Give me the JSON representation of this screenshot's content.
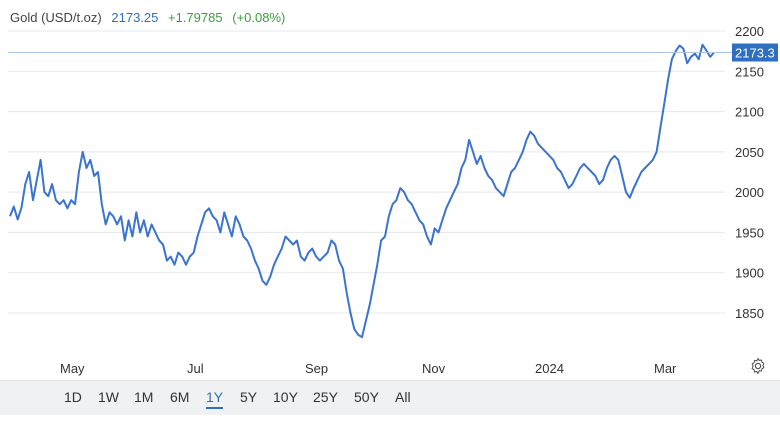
{
  "legend": {
    "symbol": "Gold (USD/t.oz)",
    "price": "2173.25",
    "change": "+1.79785",
    "percent": "(+0.08%)"
  },
  "price_tag": "2173.3",
  "range_buttons": [
    "1D",
    "1W",
    "1M",
    "6M",
    "1Y",
    "5Y",
    "10Y",
    "25Y",
    "50Y",
    "All"
  ],
  "active_range": "1Y",
  "icons": {
    "settings": "gear-icon"
  },
  "colors": {
    "line": "#3b73d1",
    "price_tag_bg": "#2f6fbf",
    "legend_change": "#3a9f3a",
    "grid": "#e6e8eb"
  },
  "chart_data": {
    "type": "line",
    "title": "",
    "xlabel": "",
    "ylabel": "",
    "y_ticks": [
      1850,
      1900,
      1950,
      2000,
      2050,
      2100,
      2150,
      2200
    ],
    "x_ticks": [
      "May",
      "Jul",
      "Sep",
      "Nov",
      "2024",
      "Mar"
    ],
    "ylim": [
      1810,
      2220
    ],
    "grid": true,
    "last_value": 2173.3,
    "series": [
      {
        "values": [
          1970,
          1982,
          1966,
          1981,
          2010,
          2025,
          1990,
          2015,
          2040,
          2000,
          1995,
          2010,
          1990,
          1985,
          1990,
          1980,
          1990,
          1985,
          2025,
          2050,
          2030,
          2040,
          2020,
          2025,
          1985,
          1960,
          1975,
          1970,
          1960,
          1970,
          1940,
          1965,
          1945,
          1975,
          1950,
          1965,
          1945,
          1960,
          1950,
          1940,
          1935,
          1915,
          1920,
          1910,
          1925,
          1920,
          1910,
          1920,
          1925,
          1945,
          1960,
          1975,
          1980,
          1970,
          1965,
          1950,
          1975,
          1960,
          1945,
          1970,
          1960,
          1945,
          1940,
          1930,
          1915,
          1905,
          1890,
          1885,
          1895,
          1910,
          1920,
          1930,
          1945,
          1940,
          1935,
          1940,
          1920,
          1915,
          1925,
          1930,
          1920,
          1915,
          1920,
          1925,
          1940,
          1935,
          1915,
          1905,
          1875,
          1850,
          1830,
          1823,
          1820,
          1840,
          1860,
          1885,
          1910,
          1940,
          1945,
          1970,
          1985,
          1990,
          2005,
          2000,
          1990,
          1985,
          1975,
          1965,
          1960,
          1945,
          1935,
          1955,
          1950,
          1965,
          1980,
          1990,
          2000,
          2010,
          2030,
          2040,
          2065,
          2050,
          2035,
          2045,
          2030,
          2020,
          2015,
          2005,
          2000,
          1995,
          2010,
          2025,
          2030,
          2040,
          2050,
          2065,
          2075,
          2070,
          2060,
          2055,
          2050,
          2045,
          2040,
          2030,
          2025,
          2015,
          2005,
          2010,
          2020,
          2030,
          2035,
          2030,
          2025,
          2020,
          2010,
          2015,
          2030,
          2040,
          2045,
          2040,
          2020,
          2000,
          1993,
          2005,
          2015,
          2025,
          2030,
          2035,
          2040,
          2050,
          2080,
          2110,
          2140,
          2165,
          2175,
          2182,
          2178,
          2160,
          2168,
          2172,
          2165,
          2183,
          2176,
          2168,
          2173.3
        ]
      }
    ]
  }
}
